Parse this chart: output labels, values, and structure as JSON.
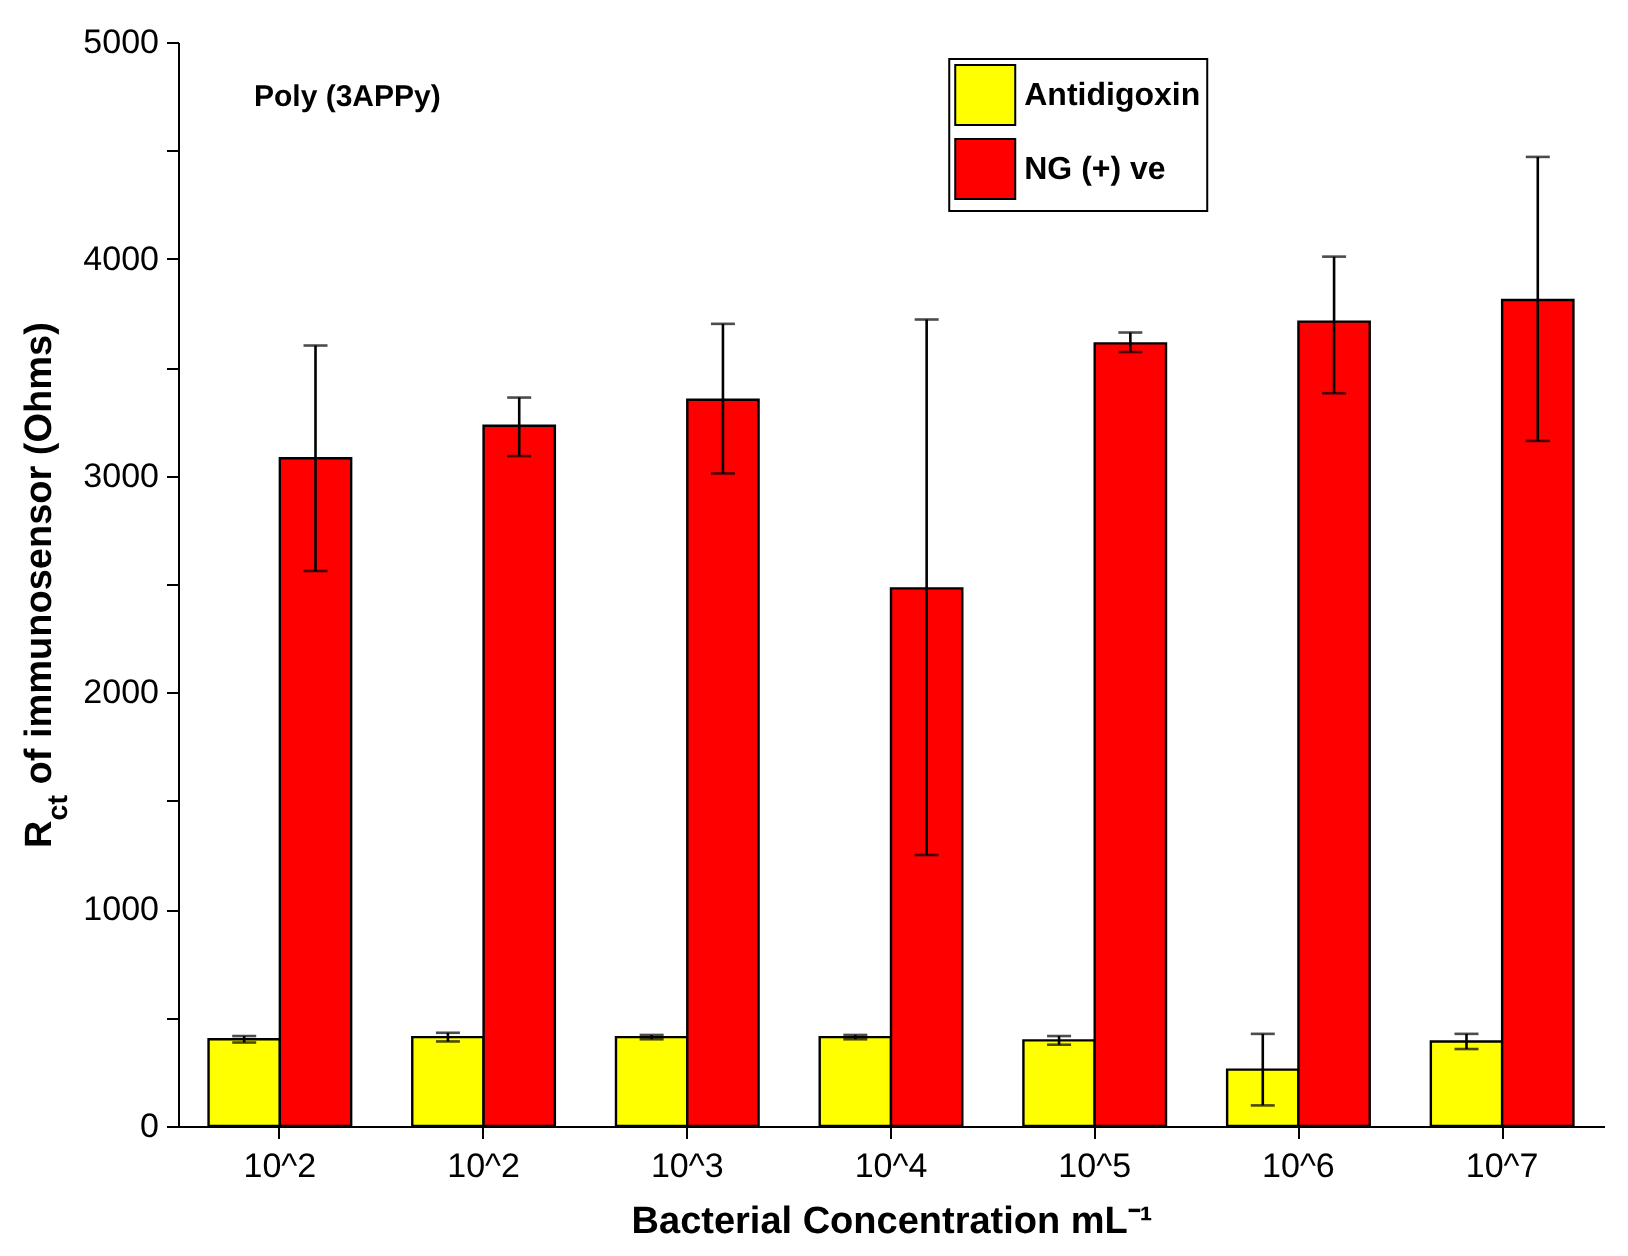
{
  "chart_data": {
    "type": "bar",
    "xlabel": "Bacterial Concentration mL⁻¹",
    "ylabel": "R$_{ct}$ of immunosensor (Ohms)",
    "categories": [
      "10^2",
      "10^2",
      "10^3",
      "10^4",
      "10^5",
      "10^6",
      "10^7"
    ],
    "series": [
      {
        "name": "Antidigoxin",
        "color": "#ffff00",
        "values": [
          400,
          410,
          410,
          410,
          395,
          260,
          390
        ],
        "errors": [
          15,
          20,
          10,
          10,
          20,
          165,
          35
        ]
      },
      {
        "name": "NG (+) ve",
        "color": "#ff0000",
        "values": [
          3080,
          3230,
          3350,
          2480,
          3610,
          3710,
          3810
        ],
        "errors": [
          [
            2560,
            3600
          ],
          [
            3090,
            3360
          ],
          [
            3010,
            3700
          ],
          [
            1250,
            3720
          ],
          [
            3570,
            3660
          ],
          [
            3380,
            4010
          ],
          [
            3160,
            4470
          ]
        ]
      }
    ],
    "ylim": [
      0,
      5000
    ],
    "yticks": [
      0,
      {
        "value": 500,
        "label": null
      },
      1000,
      {
        "value": 1500,
        "label": null
      },
      2000,
      {
        "value": 2500,
        "label": null
      },
      3000,
      {
        "value": 3500,
        "label": null
      },
      4000,
      {
        "value": 4500,
        "label": null
      },
      5000
    ],
    "annotations": [
      "Poly (3APPy)"
    ],
    "legend": "top",
    "grid": false
  }
}
